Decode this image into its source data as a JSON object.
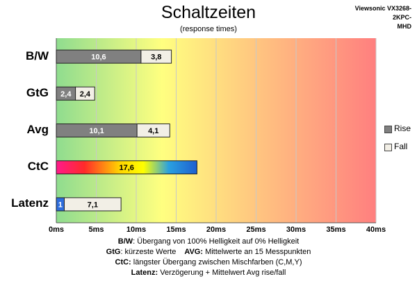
{
  "header": {
    "title": "Schaltzeiten",
    "subtitle": "(response times)",
    "model_line1": "Viewsonic VX3268-2KPC-",
    "model_line2": "MHD"
  },
  "legend": [
    {
      "name": "Rise",
      "color": "#808080"
    },
    {
      "name": "Fall",
      "color": "#f2efe6"
    }
  ],
  "notes": {
    "line1_key": "B/W",
    "line1_text": ":  Übergang von 100% Helligkeit auf 0% Helligkeit",
    "line2a_key": "GtG",
    "line2a_text": ": kürzeste  Werte",
    "line2b_key": "AVG:",
    "line2b_text": " Mittelwerte  an 15 Messpunkten",
    "line3_key": "CtC:",
    "line3_text": " längster Übergang  zwischen Mischfarben  (C,M,Y)",
    "line4_key": "Latenz:",
    "line4_text": " Verzögerung  + Mittelwert Avg rise/fall"
  },
  "chart_data": {
    "type": "bar",
    "orientation": "horizontal",
    "stacked": true,
    "title": "Schaltzeiten",
    "subtitle": "(response times)",
    "categories": [
      "B/W",
      "GtG",
      "Avg",
      "CtC",
      "Latenz"
    ],
    "series": [
      {
        "name": "Rise",
        "values": [
          10.6,
          2.4,
          10.1,
          null,
          null
        ]
      },
      {
        "name": "Fall",
        "values": [
          3.8,
          2.4,
          4.1,
          null,
          null
        ]
      }
    ],
    "ctc": {
      "value": 17.6,
      "label": "17,6",
      "gradient": [
        "#ff1a8c",
        "#ff2a2a",
        "#ffd400",
        "#ffff00",
        "#2aa0e0",
        "#1e5fd0"
      ]
    },
    "latenz": {
      "segments": [
        {
          "value": 1,
          "label": "1",
          "color": "#2e6ddc"
        },
        {
          "value": 7.1,
          "label": "7,1",
          "color": "#f2efe6"
        }
      ]
    },
    "labels": {
      "B/W": [
        "10,6",
        "3,8"
      ],
      "GtG": [
        "2,4",
        "2,4"
      ],
      "Avg": [
        "10,1",
        "4,1"
      ]
    },
    "xlim": [
      0,
      40
    ],
    "xticks": [
      "0ms",
      "5ms",
      "10ms",
      "15ms",
      "20ms",
      "25ms",
      "30ms",
      "35ms",
      "40ms"
    ],
    "background_gradient": [
      "#8fdc8f",
      "#ffff80",
      "#ffbf80",
      "#ff7f7f"
    ],
    "gridlines": true,
    "legend_position": "right"
  }
}
